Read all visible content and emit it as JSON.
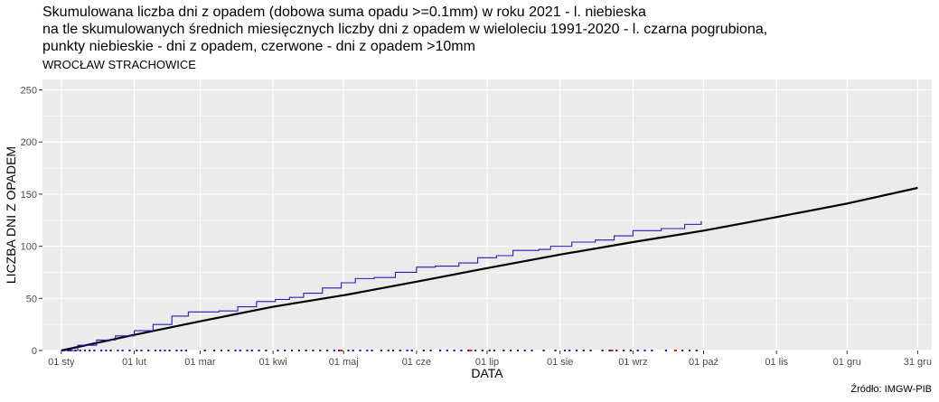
{
  "chart_data": {
    "type": "line",
    "title_lines": [
      "Skumulowana liczba dni z opadem (dobowa suma opadu >=0.1mm) w roku 2021 - l. niebieska",
      "na tle skumulowanych średnich miesięcznych liczby dni z opadem w wieloleciu 1991-2020 - l. czarna pogrubiona,",
      "punkty niebieskie - dni z opadem, czerwone - dni z opadem >10mm"
    ],
    "subtitle": "WROCŁAW  STRACHOWICE",
    "xlabel": "DATA",
    "ylabel": "LICZBA DNI Z OPADEM",
    "source": "Źródło: IMGW-PIB",
    "ylim": [
      0,
      260
    ],
    "y_ticks": [
      0,
      50,
      100,
      150,
      200,
      250
    ],
    "xlim_day": [
      -7,
      371
    ],
    "x_ticks": [
      {
        "label": "01 sty",
        "day": 1
      },
      {
        "label": "01 lut",
        "day": 32
      },
      {
        "label": "01 mar",
        "day": 60
      },
      {
        "label": "01 kwi",
        "day": 91
      },
      {
        "label": "01 maj",
        "day": 121
      },
      {
        "label": "01 cze",
        "day": 152
      },
      {
        "label": "01 lip",
        "day": 182
      },
      {
        "label": "01 sie",
        "day": 213
      },
      {
        "label": "01 wrz",
        "day": 244
      },
      {
        "label": "01 paź",
        "day": 274
      },
      {
        "label": "01 lis",
        "day": 305
      },
      {
        "label": "01 gru",
        "day": 335
      },
      {
        "label": "31 gru",
        "day": 365
      }
    ],
    "colors": {
      "panel": "#ebebeb",
      "grid": "#ffffff",
      "observed": "#1f1fb4",
      "normal": "#000000",
      "heavy": "#d62020"
    },
    "series": [
      {
        "id": "normal",
        "points": [
          [
            1,
            0
          ],
          [
            32,
            15
          ],
          [
            60,
            28
          ],
          [
            91,
            42
          ],
          [
            121,
            53
          ],
          [
            152,
            66
          ],
          [
            182,
            79
          ],
          [
            213,
            92
          ],
          [
            244,
            104
          ],
          [
            274,
            115
          ],
          [
            305,
            128
          ],
          [
            335,
            141
          ],
          [
            365,
            156
          ]
        ]
      },
      {
        "id": "observed",
        "points": [
          [
            1,
            0
          ],
          [
            8,
            5
          ],
          [
            16,
            10
          ],
          [
            24,
            14
          ],
          [
            32,
            19
          ],
          [
            40,
            25
          ],
          [
            48,
            33
          ],
          [
            55,
            37
          ],
          [
            68,
            38
          ],
          [
            76,
            42
          ],
          [
            84,
            47
          ],
          [
            92,
            49
          ],
          [
            98,
            51
          ],
          [
            104,
            55
          ],
          [
            112,
            60
          ],
          [
            120,
            65
          ],
          [
            126,
            69
          ],
          [
            134,
            70
          ],
          [
            143,
            75
          ],
          [
            152,
            80
          ],
          [
            160,
            81
          ],
          [
            170,
            84
          ],
          [
            178,
            89
          ],
          [
            186,
            91
          ],
          [
            193,
            96
          ],
          [
            204,
            97
          ],
          [
            209,
            100
          ],
          [
            218,
            104
          ],
          [
            228,
            106
          ],
          [
            236,
            110
          ],
          [
            244,
            115
          ],
          [
            256,
            117
          ],
          [
            266,
            121
          ],
          [
            273,
            124
          ]
        ]
      }
    ],
    "rain_days": [
      2,
      4,
      5,
      7,
      9,
      11,
      13,
      15,
      18,
      20,
      22,
      25,
      27,
      30,
      33,
      35,
      38,
      41,
      43,
      45,
      47,
      50,
      52,
      54,
      62,
      66,
      69,
      72,
      75,
      77,
      80,
      82,
      85,
      88,
      93,
      96,
      99,
      102,
      105,
      108,
      111,
      114,
      117,
      119,
      123,
      125,
      128,
      131,
      133,
      137,
      140,
      142,
      145,
      148,
      150,
      155,
      158,
      162,
      165,
      168,
      171,
      174,
      177,
      180,
      183,
      185,
      189,
      192,
      195,
      198,
      201,
      206,
      211,
      215,
      217,
      220,
      223,
      226,
      231,
      234,
      237,
      240,
      243,
      246,
      249,
      252,
      258,
      262,
      265,
      268,
      271
    ],
    "heavy_days": [
      120,
      175,
      235,
      262
    ]
  }
}
